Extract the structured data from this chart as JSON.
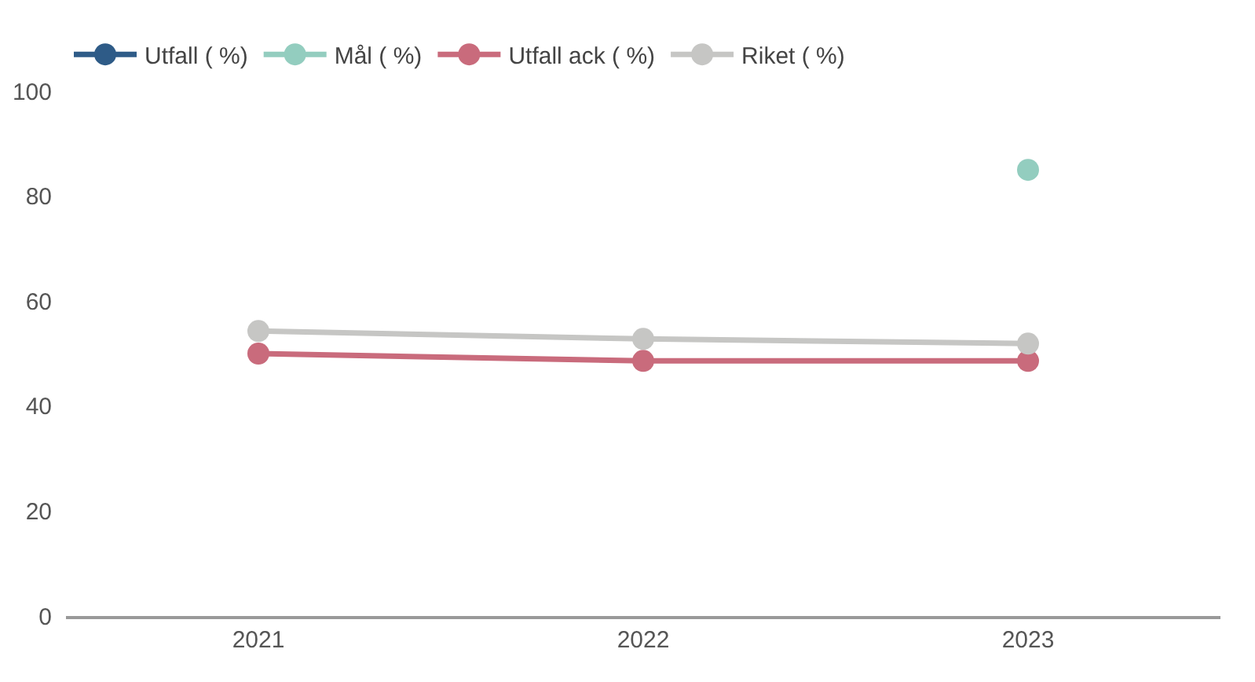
{
  "chart_data": {
    "type": "line",
    "categories": [
      "2021",
      "2022",
      "2023"
    ],
    "series": [
      {
        "name": "Utfall ( %)",
        "color": "#2e5b87",
        "values": [
          null,
          null,
          null
        ]
      },
      {
        "name": "Mål ( %)",
        "color": "#93cdbf",
        "values": [
          null,
          null,
          85
        ]
      },
      {
        "name": "Utfall ack ( %)",
        "color": "#c96b7c",
        "values": [
          50,
          48.6,
          48.6
        ]
      },
      {
        "name": "Riket ( %)",
        "color": "#c6c6c4",
        "values": [
          54.3,
          52.8,
          51.9
        ]
      }
    ],
    "ylim": [
      0,
      100
    ],
    "yticks": [
      0,
      20,
      40,
      60,
      80,
      100
    ],
    "grid": false,
    "legend": "top left",
    "marker": "circle",
    "line_style": "solid"
  }
}
